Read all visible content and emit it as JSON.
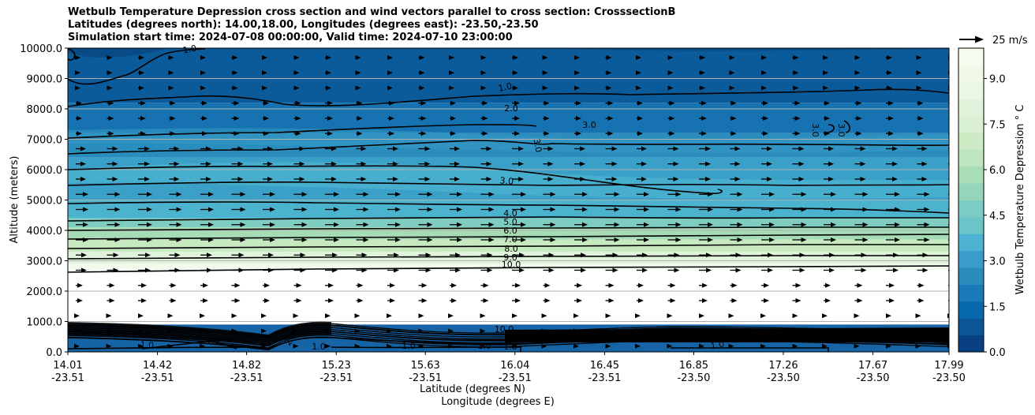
{
  "chart_data": {
    "type": "contour",
    "title_lines": [
      "Wetbulb Temperature Depression cross section and wind vectors parallel to cross section: CrosssectionB",
      "Latitudes (degrees north): 14.00,18.00, Longitudes (degrees east): -23.50,-23.50",
      "Simulation start time: 2024-07-08 00:00:00, Valid time: 2024-07-10 23:00:00"
    ],
    "xlabel_lat": "Latitude (degrees N)",
    "xlabel_lon": "Longitude (degrees E)",
    "ylabel": "Altitude (meters)",
    "ylim": [
      0,
      10000
    ],
    "yticks": [
      "0.0",
      "1000.0",
      "2000.0",
      "3000.0",
      "4000.0",
      "5000.0",
      "6000.0",
      "7000.0",
      "8000.0",
      "9000.0",
      "10000.0"
    ],
    "xtick_lat": [
      "14.01",
      "14.42",
      "14.82",
      "15.23",
      "15.63",
      "16.04",
      "16.45",
      "16.85",
      "17.26",
      "17.67",
      "17.99"
    ],
    "xtick_lon": [
      "-23.51",
      "-23.51",
      "-23.51",
      "-23.51",
      "-23.51",
      "-23.51",
      "-23.51",
      "-23.50",
      "-23.50",
      "-23.50",
      "-23.50"
    ],
    "grid": "horizontal",
    "colorbar": {
      "label": "Wetbulb Temperature Depression $^\\circ$C",
      "ticks": [
        "0.0",
        "1.5",
        "3.0",
        "4.5",
        "6.0",
        "7.5",
        "9.0"
      ],
      "range": [
        0,
        10
      ],
      "colormap": "GnBu_r"
    },
    "quiver_key": "25 m/s",
    "contour_levels": [
      1.0,
      2.0,
      3.0,
      4.0,
      5.0,
      6.0,
      7.0,
      8.0,
      9.0,
      10.0
    ],
    "contour_label_texts": [
      "1.0",
      "1.0",
      "2.0",
      "3.0",
      "3.0",
      "3.0",
      "3.0",
      "3.0",
      "4.0",
      "5.0",
      "6.0",
      "7.0",
      "8.0",
      "9.0",
      "10.0",
      "10.0",
      "1.0",
      "1.0",
      "1.0",
      "1.0",
      "1.0",
      "1.0",
      "1.0",
      "2.0"
    ],
    "wind": "arrows pointing in +x direction (southerly component along the cross section), longer in 2000-6000 m layer"
  }
}
